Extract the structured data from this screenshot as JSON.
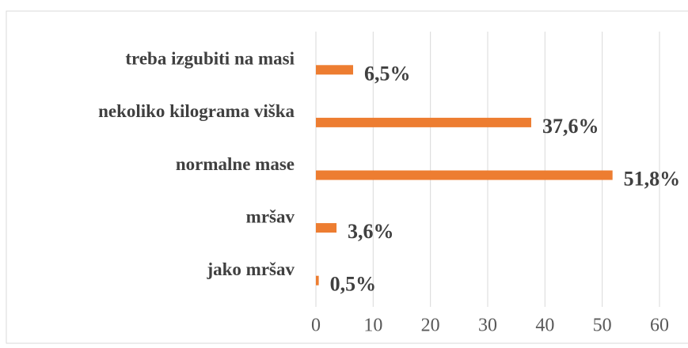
{
  "chart_data": {
    "type": "bar",
    "orientation": "horizontal",
    "categories": [
      "treba izgubiti na masi",
      "nekoliko kilograma viška",
      "normalne mase",
      "mršav",
      "jako mršav"
    ],
    "values": [
      6.5,
      37.6,
      51.8,
      3.6,
      0.5
    ],
    "value_labels": [
      "6,5%",
      "37,6%",
      "51,8%",
      "3,6%",
      "0,5%"
    ],
    "color": "#ed7d31",
    "xlim": [
      0,
      60
    ],
    "xticks": [
      0,
      10,
      20,
      30,
      40,
      50,
      60
    ],
    "grid": true
  }
}
